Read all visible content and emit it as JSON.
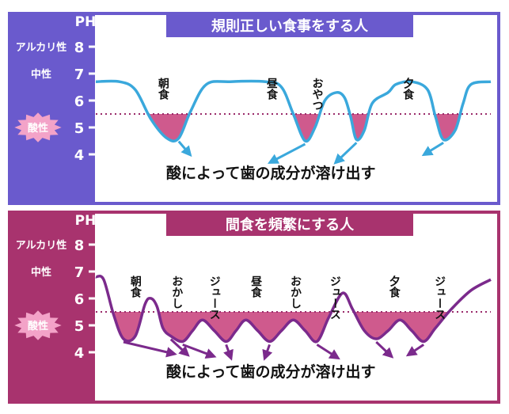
{
  "colors": {
    "panel1_frame": "#6a5acd",
    "panel1_line": "#3aa8dc",
    "panel2_frame": "#a8336e",
    "panel2_line": "#7b2a8c",
    "acid_fill": "#cf5a8d",
    "threshold": "#9a2a6a",
    "acid_badge": "#f3a3c8"
  },
  "chart_data": [
    {
      "type": "line",
      "title": "規則正しい食事をする人",
      "ylabel": "PH",
      "ylim": [
        3.5,
        8.5
      ],
      "yticks": [
        8,
        7,
        6,
        5,
        4
      ],
      "y_level_labels": [
        {
          "label": "アルカリ性",
          "at": 8
        },
        {
          "label": "中性",
          "at": 7
        },
        {
          "label": "酸性",
          "at": 5
        }
      ],
      "threshold": 5.5,
      "caption": "酸によって歯の成分が溶け出す",
      "events": [
        "朝食",
        "昼食",
        "おやつ",
        "夕食"
      ],
      "series": [
        {
          "points": [
            [
              0.0,
              6.7
            ],
            [
              0.06,
              6.7
            ],
            [
              0.1,
              6.4
            ],
            [
              0.14,
              5.3
            ],
            [
              0.18,
              4.6
            ],
            [
              0.21,
              4.6
            ],
            [
              0.24,
              5.6
            ],
            [
              0.28,
              6.6
            ],
            [
              0.34,
              6.7
            ],
            [
              0.43,
              6.7
            ],
            [
              0.47,
              6.5
            ],
            [
              0.5,
              5.5
            ],
            [
              0.53,
              4.5
            ],
            [
              0.555,
              5.0
            ],
            [
              0.58,
              6.0
            ],
            [
              0.61,
              6.3
            ],
            [
              0.63,
              6.1
            ],
            [
              0.645,
              5.4
            ],
            [
              0.66,
              4.55
            ],
            [
              0.68,
              4.9
            ],
            [
              0.7,
              5.9
            ],
            [
              0.74,
              6.3
            ],
            [
              0.76,
              6.6
            ],
            [
              0.8,
              6.7
            ],
            [
              0.84,
              6.4
            ],
            [
              0.86,
              5.4
            ],
            [
              0.88,
              4.55
            ],
            [
              0.91,
              4.9
            ],
            [
              0.93,
              5.9
            ],
            [
              0.95,
              6.6
            ],
            [
              1.0,
              6.7
            ]
          ]
        }
      ]
    },
    {
      "type": "line",
      "title": "間食を頻繁にする人",
      "ylabel": "PH",
      "ylim": [
        3.5,
        8.5
      ],
      "yticks": [
        8,
        7,
        6,
        5,
        4
      ],
      "y_level_labels": [
        {
          "label": "アルカリ性",
          "at": 8
        },
        {
          "label": "中性",
          "at": 7
        },
        {
          "label": "酸性",
          "at": 5
        }
      ],
      "threshold": 5.5,
      "caption": "酸によって歯の成分が溶け出す",
      "events": [
        "朝食",
        "おかし",
        "ジュース",
        "昼食",
        "おかし",
        "ジュース",
        "夕食",
        "ジュース"
      ],
      "series": [
        {
          "points": [
            [
              0.0,
              6.8
            ],
            [
              0.02,
              6.7
            ],
            [
              0.045,
              5.4
            ],
            [
              0.07,
              4.5
            ],
            [
              0.1,
              4.6
            ],
            [
              0.125,
              5.8
            ],
            [
              0.14,
              6.0
            ],
            [
              0.155,
              5.7
            ],
            [
              0.17,
              4.9
            ],
            [
              0.19,
              4.6
            ],
            [
              0.22,
              4.4
            ],
            [
              0.245,
              4.8
            ],
            [
              0.27,
              5.2
            ],
            [
              0.3,
              4.8
            ],
            [
              0.33,
              4.4
            ],
            [
              0.355,
              4.8
            ],
            [
              0.38,
              5.2
            ],
            [
              0.41,
              4.8
            ],
            [
              0.44,
              4.4
            ],
            [
              0.47,
              4.8
            ],
            [
              0.5,
              5.2
            ],
            [
              0.53,
              4.8
            ],
            [
              0.56,
              4.4
            ],
            [
              0.59,
              5.3
            ],
            [
              0.625,
              6.2
            ],
            [
              0.65,
              5.6
            ],
            [
              0.68,
              4.8
            ],
            [
              0.71,
              4.5
            ],
            [
              0.74,
              4.8
            ],
            [
              0.77,
              5.2
            ],
            [
              0.8,
              4.8
            ],
            [
              0.83,
              4.4
            ],
            [
              0.86,
              4.9
            ],
            [
              0.9,
              5.6
            ],
            [
              0.95,
              6.3
            ],
            [
              1.0,
              6.7
            ]
          ]
        }
      ]
    }
  ]
}
